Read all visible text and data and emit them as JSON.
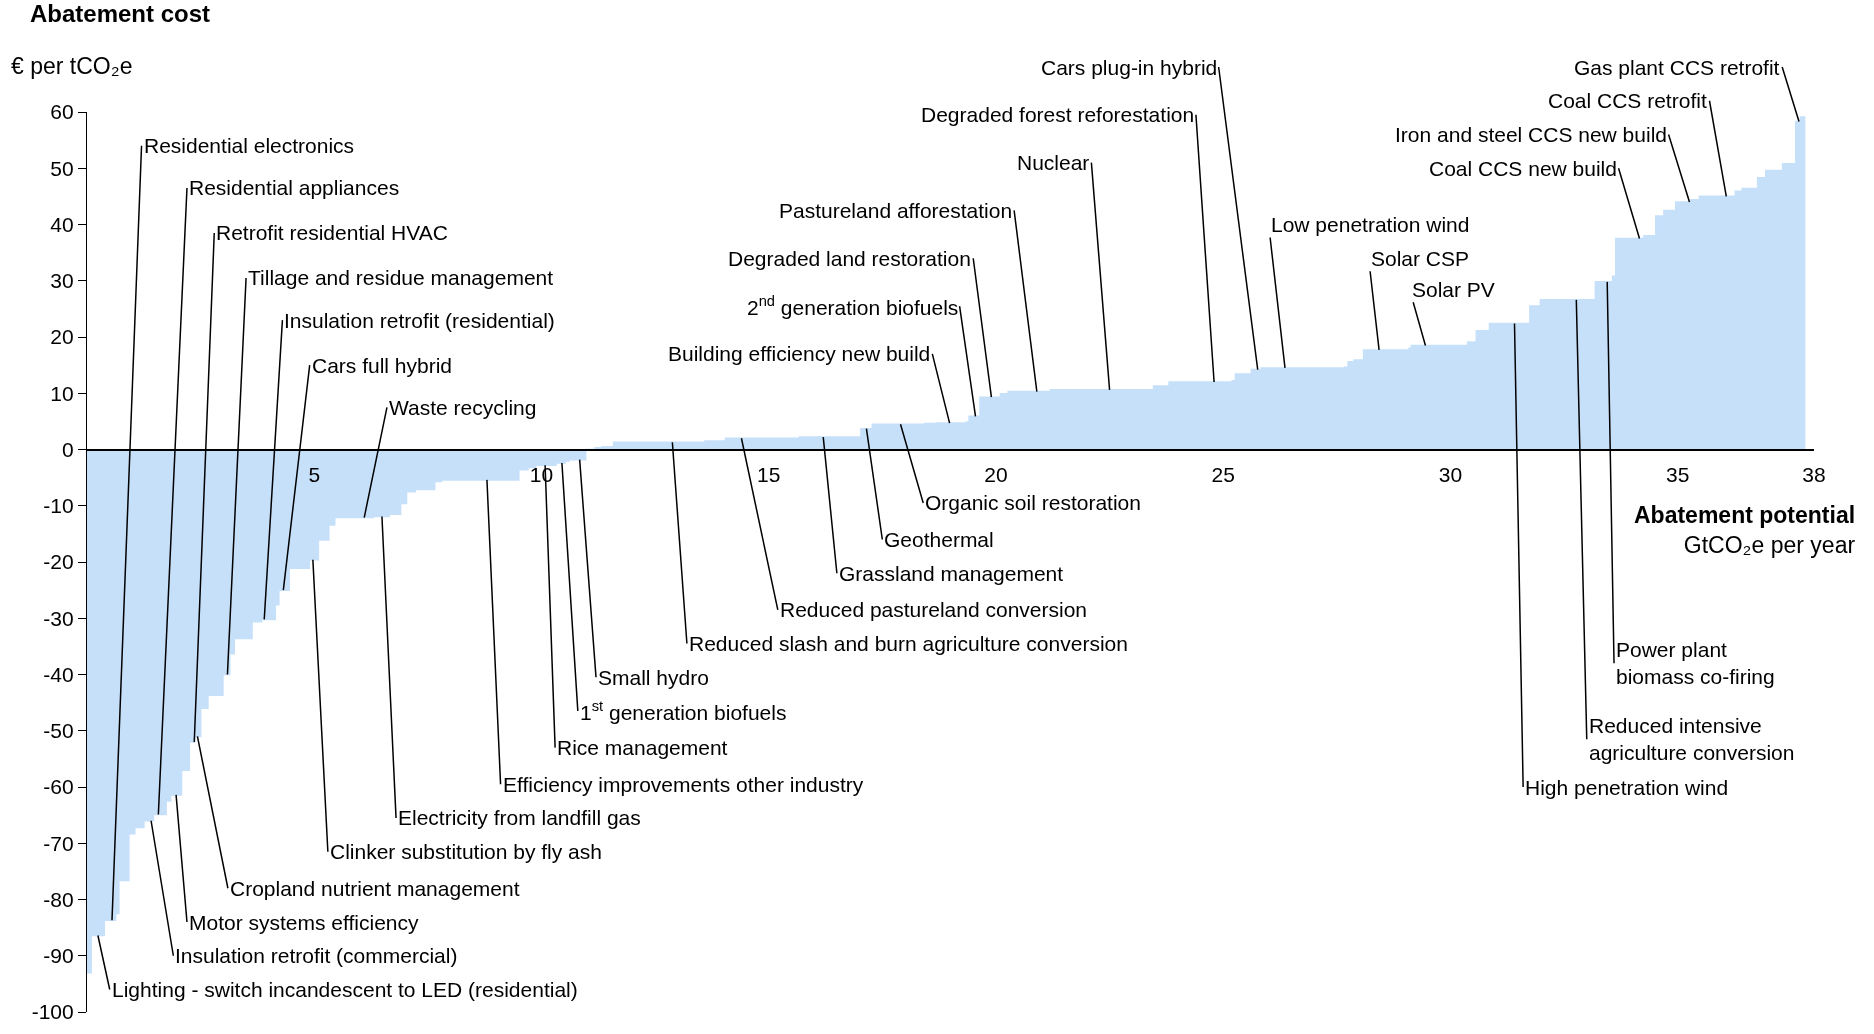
{
  "chart_data": {
    "type": "area",
    "title": "Abatement cost",
    "ylabel": "€ per tCO₂e",
    "xlabel": "Abatement potential\nGtCO₂e per year",
    "x": [
      0,
      0.09,
      0.38,
      0.63,
      0.7,
      0.92,
      1.05,
      1.25,
      1.46,
      1.74,
      1.84,
      2.08,
      2.25,
      2.37,
      2.5,
      2.66,
      2.99,
      3.14,
      3.24,
      3.63,
      3.84,
      4.14,
      4.22,
      4.45,
      4.89,
      5.09,
      5.32,
      5.45,
      6.3,
      6.65,
      6.9,
      7.03,
      7.22,
      7.65,
      7.8,
      9.5,
      9.7,
      9.87,
      10.32,
      10.52,
      10.6,
      10.97,
      11.18,
      11.33,
      11.59,
      13.6,
      14.05,
      15.68,
      17.03,
      17.28,
      18.43,
      18.69,
      19.35,
      19.41,
      19.65,
      20.1,
      20.27,
      21.2,
      23.47,
      23.81,
      25.2,
      25.27,
      25.62,
      25.84,
      27.67,
      27.75,
      27.88,
      28.09,
      29.09,
      29.14,
      30.38,
      30.57,
      30.86,
      31.75,
      31.98,
      33.19,
      33.57,
      33.64,
      34.26,
      34.52,
      34.7,
      34.96,
      35.29,
      35.48,
      36.27,
      36.42,
      36.76,
      36.94,
      37.31,
      37.6,
      37.7,
      37.81
    ],
    "series": [
      {
        "color": "#c6e0fa",
        "values": [
          -93,
          -86.4,
          -83.7,
          -82.5,
          -76.6,
          -68.3,
          -67.2,
          -66,
          -64.9,
          -62.5,
          -61.4,
          -57,
          -52,
          -51,
          -46,
          -43.7,
          -40,
          -36.3,
          -33.6,
          -30.6,
          -30.2,
          -27.6,
          -25,
          -21.1,
          -19.6,
          -16.1,
          -13.4,
          -12.1,
          -11.9,
          -11.5,
          -9.6,
          -7.5,
          -7.1,
          -5.7,
          -5.4,
          -3.6,
          -3.2,
          -2.8,
          -2.4,
          -2.1,
          -1.8,
          0,
          0.3,
          0.5,
          1.3,
          1.5,
          2,
          2.2,
          3.7,
          4.5,
          4.6,
          4.7,
          4.9,
          5.9,
          9.3,
          9.9,
          10.3,
          10.6,
          11.3,
          12,
          12.2,
          13.4,
          14.2,
          14.5,
          14.6,
          15.6,
          15.9,
          17.7,
          18,
          18.5,
          19.1,
          21.1,
          22.4,
          25.5,
          26.6,
          29.8,
          30.8,
          37.5,
          38,
          41.5,
          42.5,
          44,
          44.4,
          45,
          45.9,
          46.4,
          48.3,
          49.6,
          50.8,
          58.3,
          59.1,
          59.1
        ]
      }
    ],
    "xlim": [
      0,
      38
    ],
    "xticks": [
      5,
      10,
      15,
      20,
      25,
      30,
      35,
      38
    ],
    "ylim": [
      -100,
      60
    ],
    "yticks": [
      -100,
      -90,
      -80,
      -70,
      -60,
      -50,
      -40,
      -30,
      -20,
      -10,
      0,
      10,
      20,
      30,
      40,
      50,
      60
    ],
    "grid": false,
    "annotations": [
      {
        "text": "Residential electronics",
        "x": 0.55,
        "y": -83.7
      },
      {
        "text": "Residential appliances",
        "x": 1.57,
        "y": -64.9
      },
      {
        "text": "Retrofit residential HVAC",
        "x": 2.36,
        "y": -52
      },
      {
        "text": "Tillage and residue management",
        "x": 3.09,
        "y": -40
      },
      {
        "text": "Insulation retrofit (residential)",
        "x": 3.9,
        "y": -30.2
      },
      {
        "text": "Cars full hybrid",
        "x": 4.32,
        "y": -25
      },
      {
        "text": "Waste recycling",
        "x": 6.1,
        "y": -12.1
      },
      {
        "text": "Lighting - switch incandescent to LED (residential)",
        "x": 0.24,
        "y": -86.4
      },
      {
        "text": "Insulation retrofit (commercial)",
        "x": 1.41,
        "y": -66
      },
      {
        "text": "Motor systems efficiency",
        "x": 1.96,
        "y": -61.4
      },
      {
        "text": "Cropland nutrient management",
        "x": 2.43,
        "y": -51
      },
      {
        "text": "Clinker substitution by fly ash",
        "x": 4.97,
        "y": -19.6
      },
      {
        "text": "Electricity from landfill gas",
        "x": 6.49,
        "y": -11.9
      },
      {
        "text": "Efficiency improvements other industry",
        "x": 8.8,
        "y": -5.4
      },
      {
        "text": "Rice management",
        "x": 10.08,
        "y": -2.8
      },
      {
        "text": "1$^{st}$ generation biofuels",
        "x": 10.45,
        "y": -2.4
      },
      {
        "text": "Small hydro",
        "x": 10.84,
        "y": -1.8
      },
      {
        "text": "Reduced slash and burn agriculture conversion",
        "x": 12.88,
        "y": 1.3
      },
      {
        "text": "Reduced pastureland conversion",
        "x": 14.4,
        "y": 2
      },
      {
        "text": "Grassland management",
        "x": 16.2,
        "y": 2.2
      },
      {
        "text": "Geothermal",
        "x": 17.15,
        "y": 3.7
      },
      {
        "text": "Organic soil restoration",
        "x": 17.9,
        "y": 4.5
      },
      {
        "text": "Building efficiency new build",
        "x": 18.98,
        "y": 4.7
      },
      {
        "text": "2$^{nd}$ generation biofuels",
        "x": 19.55,
        "y": 5.9
      },
      {
        "text": "Degraded land restoration",
        "x": 19.9,
        "y": 9.3
      },
      {
        "text": "Pastureland afforestation",
        "x": 20.9,
        "y": 10.3
      },
      {
        "text": "Nuclear",
        "x": 22.5,
        "y": 10.6
      },
      {
        "text": "Degraded forest reforestation",
        "x": 24.8,
        "y": 12
      },
      {
        "text": "Cars plug-in hybrid",
        "x": 25.76,
        "y": 14.2
      },
      {
        "text": "Low penetration wind",
        "x": 26.36,
        "y": 14.5
      },
      {
        "text": "Solar CSP",
        "x": 28.43,
        "y": 17.7
      },
      {
        "text": "Solar PV",
        "x": 29.45,
        "y": 18.5
      },
      {
        "text": "Coal CCS new build",
        "x": 34.16,
        "y": 37.5
      },
      {
        "text": "Iron and steel CCS new build",
        "x": 35.26,
        "y": 44
      },
      {
        "text": "Coal CCS retrofit",
        "x": 36.07,
        "y": 45
      },
      {
        "text": "Gas plant CCS retrofit",
        "x": 37.67,
        "y": 58.3
      },
      {
        "text": "High penetration wind",
        "x": 31.41,
        "y": 22.4
      },
      {
        "text": "Reduced intensive\nagriculture conversion",
        "x": 32.77,
        "y": 26.6
      },
      {
        "text": "Power plant\nbiomass co-firing",
        "x": 33.45,
        "y": 29.8
      }
    ]
  }
}
